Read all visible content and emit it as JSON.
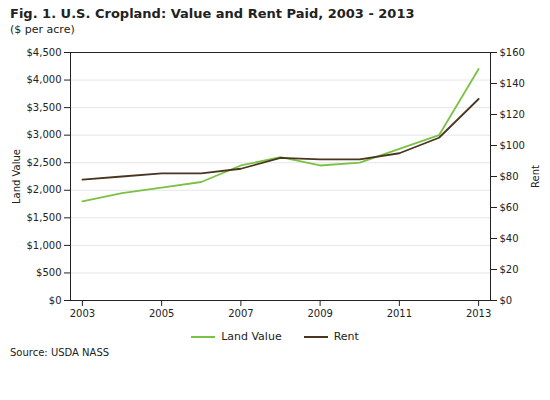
{
  "chart_data": {
    "type": "line",
    "title": "Fig. 1. U.S. Cropland: Value and Rent Paid, 2003 - 2013",
    "subtitle": "($ per acre)",
    "annotations": [
      "Source: USDA NASS"
    ],
    "x": [
      2003,
      2004,
      2005,
      2006,
      2007,
      2008,
      2009,
      2010,
      2011,
      2012,
      2013
    ],
    "series": [
      {
        "name": "Land Value",
        "color": "#7bc143",
        "values": [
          1800,
          1950,
          2050,
          2150,
          2450,
          2600,
          2450,
          2500,
          2750,
          3000,
          4200
        ]
      },
      {
        "name": "Rent",
        "color": "#4a3520",
        "axis": "y2",
        "values": [
          78,
          80,
          82,
          82,
          85,
          92,
          91,
          91,
          95,
          105,
          130
        ]
      }
    ],
    "ylabel": "Land Value",
    "y2label": "Rent",
    "xlim": [
      2002.7,
      2013.3
    ],
    "xticks": [
      2003,
      2005,
      2007,
      2009,
      2011,
      2013
    ],
    "ylim": [
      0,
      4500
    ],
    "yticks": [
      {
        "value": 0,
        "label": "$0"
      },
      {
        "value": 500,
        "label": "$500"
      },
      {
        "value": 1000,
        "label": "$1,000"
      },
      {
        "value": 1500,
        "label": "$1,500"
      },
      {
        "value": 2000,
        "label": "$2,000"
      },
      {
        "value": 2500,
        "label": "$2,500"
      },
      {
        "value": 3000,
        "label": "$3,000"
      },
      {
        "value": 3500,
        "label": "$3,500"
      },
      {
        "value": 4000,
        "label": "$4,000"
      },
      {
        "value": 4500,
        "label": "$4,500"
      }
    ],
    "y2lim": [
      0,
      160
    ],
    "y2ticks": [
      {
        "value": 0,
        "label": "$0"
      },
      {
        "value": 20,
        "label": "$20"
      },
      {
        "value": 40,
        "label": "$40"
      },
      {
        "value": 60,
        "label": "$60"
      },
      {
        "value": 80,
        "label": "$80"
      },
      {
        "value": 100,
        "label": "$100"
      },
      {
        "value": 120,
        "label": "$120"
      },
      {
        "value": 140,
        "label": "$140"
      },
      {
        "value": 160,
        "label": "$160"
      }
    ],
    "grid": true,
    "legend": "bottom"
  }
}
